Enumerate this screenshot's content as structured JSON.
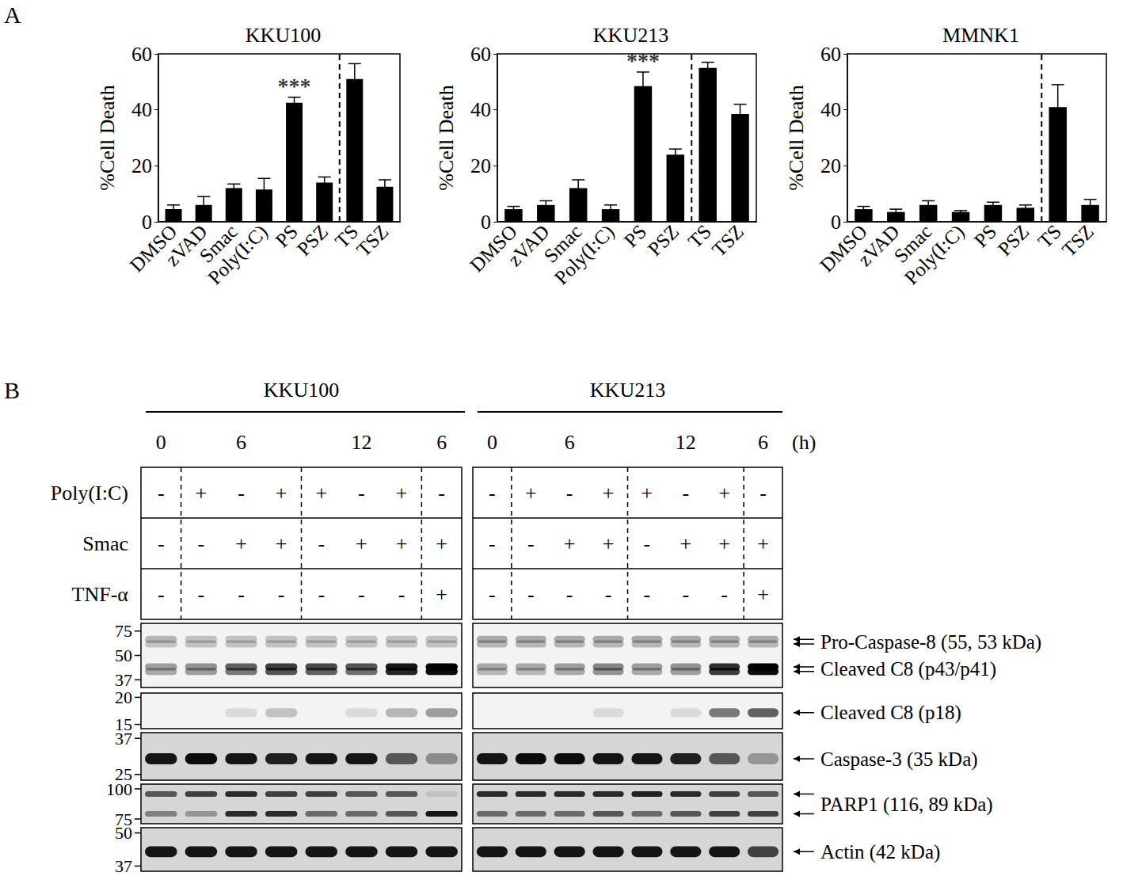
{
  "panel_labels": [
    "A",
    "B"
  ],
  "chart_data": [
    {
      "type": "bar",
      "title": "KKU100",
      "y_label": "%Cell Death",
      "categories": [
        "DMSO",
        "zVAD",
        "Smac",
        "Poly(I:C)",
        "PS",
        "PSZ",
        "TS",
        "TSZ"
      ],
      "values": [
        4.5,
        6,
        12,
        11.5,
        42.5,
        14,
        51,
        12.5
      ],
      "errors": [
        1.5,
        3,
        1.5,
        4,
        2,
        2,
        5.5,
        2.5
      ],
      "color": "#000000",
      "ylim": [
        0,
        60
      ],
      "yticks": [
        0,
        20,
        40,
        60
      ],
      "grid": false,
      "annotations": [
        {
          "category": "PS",
          "text": "***"
        }
      ]
    },
    {
      "type": "bar",
      "title": "KKU213",
      "y_label": "%Cell Death",
      "categories": [
        "DMSO",
        "zVAD",
        "Smac",
        "Poly(I:C)",
        "PS",
        "PSZ",
        "TS",
        "TSZ"
      ],
      "values": [
        4.5,
        6,
        12,
        4.5,
        48.5,
        24,
        55,
        38.5
      ],
      "errors": [
        1,
        1.5,
        3,
        1.5,
        5,
        2,
        2,
        3.5
      ],
      "color": "#000000",
      "ylim": [
        0,
        60
      ],
      "yticks": [
        0,
        20,
        40,
        60
      ],
      "grid": false,
      "annotations": [
        {
          "category": "PS",
          "text": "***"
        }
      ]
    },
    {
      "type": "bar",
      "title": "MMNK1",
      "y_label": "%Cell Death",
      "categories": [
        "DMSO",
        "zVAD",
        "Smac",
        "Poly(I:C)",
        "PS",
        "PSZ",
        "TS",
        "TSZ"
      ],
      "values": [
        4.5,
        3.5,
        6,
        3.5,
        6,
        5,
        41,
        6
      ],
      "errors": [
        1,
        1,
        1.5,
        0.5,
        1,
        1,
        8,
        2
      ],
      "color": "#000000",
      "ylim": [
        0,
        60
      ],
      "yticks": [
        0,
        20,
        40,
        60
      ],
      "grid": false
    }
  ],
  "blot": {
    "cell_lines": [
      "KKU100",
      "KKU213"
    ],
    "time_groups": [
      {
        "label": "0",
        "lanes": 1
      },
      {
        "label": "6",
        "lanes": 3
      },
      {
        "label": "12",
        "lanes": 3
      },
      {
        "label": "6",
        "lanes": 1
      }
    ],
    "time_unit": "(h)",
    "conditions": [
      {
        "label": "Poly(I:C)",
        "values": [
          "-",
          "+",
          "-",
          "+",
          "+",
          "-",
          "+",
          "-"
        ]
      },
      {
        "label": "Smac",
        "values": [
          "-",
          "-",
          "+",
          "+",
          "-",
          "+",
          "+",
          "+"
        ]
      },
      {
        "label": "TNF-α",
        "values": [
          "-",
          "-",
          "-",
          "-",
          "-",
          "-",
          "-",
          "+"
        ]
      }
    ],
    "panels": [
      {
        "markers": [
          75,
          50,
          37
        ],
        "targets": [
          {
            "label": "Pro-Caspase-8 (55, 53 kDa)",
            "kda": [
              55,
              53
            ],
            "lanes": {
              "KKU100": [
                [
                  0.25,
                  0.2,
                  0.2,
                  0.2,
                  0.2,
                  0.2,
                  0.2,
                  0.2
                ],
                [
                  0.2,
                  0.2,
                  0.2,
                  0.2,
                  0.2,
                  0.2,
                  0.2,
                  0.2
                ]
              ],
              "KKU213": [
                [
                  0.3,
                  0.3,
                  0.3,
                  0.3,
                  0.3,
                  0.3,
                  0.3,
                  0.3
                ],
                [
                  0.25,
                  0.25,
                  0.25,
                  0.25,
                  0.25,
                  0.25,
                  0.25,
                  0.25
                ]
              ]
            }
          },
          {
            "label": "Cleaved C8 (p43/p41)",
            "kda": [
              43,
              41
            ],
            "lanes": {
              "KKU100": [
                [
                  0.35,
                  0.4,
                  0.6,
                  0.75,
                  0.7,
                  0.65,
                  0.9,
                  1.0
                ],
                [
                  0.3,
                  0.35,
                  0.5,
                  0.65,
                  0.6,
                  0.55,
                  0.85,
                  0.95
                ]
              ],
              "KKU213": [
                [
                  0.3,
                  0.3,
                  0.35,
                  0.45,
                  0.35,
                  0.4,
                  0.8,
                  1.0
                ],
                [
                  0.25,
                  0.25,
                  0.3,
                  0.4,
                  0.3,
                  0.35,
                  0.75,
                  0.95
                ]
              ]
            }
          }
        ]
      },
      {
        "markers": [
          20,
          15
        ],
        "targets": [
          {
            "label": "Cleaved C8 (p18)",
            "kda": [
              18
            ],
            "lanes": {
              "KKU100": [
                [
                  0,
                  0,
                  0.1,
                  0.2,
                  0,
                  0.1,
                  0.25,
                  0.35
                ]
              ],
              "KKU213": [
                [
                  0,
                  0,
                  0,
                  0.1,
                  0,
                  0.1,
                  0.5,
                  0.6
                ]
              ]
            }
          }
        ]
      },
      {
        "markers": [
          37,
          25
        ],
        "targets": [
          {
            "label": "Caspase-3 (35 kDa)",
            "kda": [
              35
            ],
            "lanes": {
              "KKU100": [
                [
                  0.9,
                  0.95,
                  0.9,
                  0.85,
                  0.9,
                  0.9,
                  0.6,
                  0.35
                ]
              ],
              "KKU213": [
                [
                  0.9,
                  0.95,
                  0.95,
                  0.9,
                  0.9,
                  0.85,
                  0.6,
                  0.3
                ]
              ]
            }
          }
        ]
      },
      {
        "markers": [
          100,
          75
        ],
        "targets": [
          {
            "label": "PARP1 (116, 89 kDa)",
            "kda": [
              116,
              89
            ],
            "lanes": {
              "KKU100": [
                [
                  0.6,
                  0.7,
                  0.8,
                  0.7,
                  0.7,
                  0.6,
                  0.6,
                  0.1
                ],
                [
                  0.4,
                  0.3,
                  0.8,
                  0.8,
                  0.5,
                  0.5,
                  0.6,
                  0.9
                ]
              ],
              "KKU213": [
                [
                  0.8,
                  0.8,
                  0.8,
                  0.8,
                  0.85,
                  0.8,
                  0.7,
                  0.6
                ],
                [
                  0.5,
                  0.5,
                  0.5,
                  0.6,
                  0.5,
                  0.6,
                  0.7,
                  0.7
                ]
              ]
            }
          }
        ]
      },
      {
        "markers": [
          50,
          37
        ],
        "targets": [
          {
            "label": "Actin (42 kDa)",
            "kda": [
              42
            ],
            "lanes": {
              "KKU100": [
                [
                  0.9,
                  0.9,
                  0.9,
                  0.9,
                  0.9,
                  0.9,
                  0.9,
                  0.9
                ]
              ],
              "KKU213": [
                [
                  0.9,
                  0.9,
                  0.9,
                  0.9,
                  0.9,
                  0.9,
                  0.9,
                  0.7
                ]
              ]
            }
          }
        ]
      }
    ]
  }
}
